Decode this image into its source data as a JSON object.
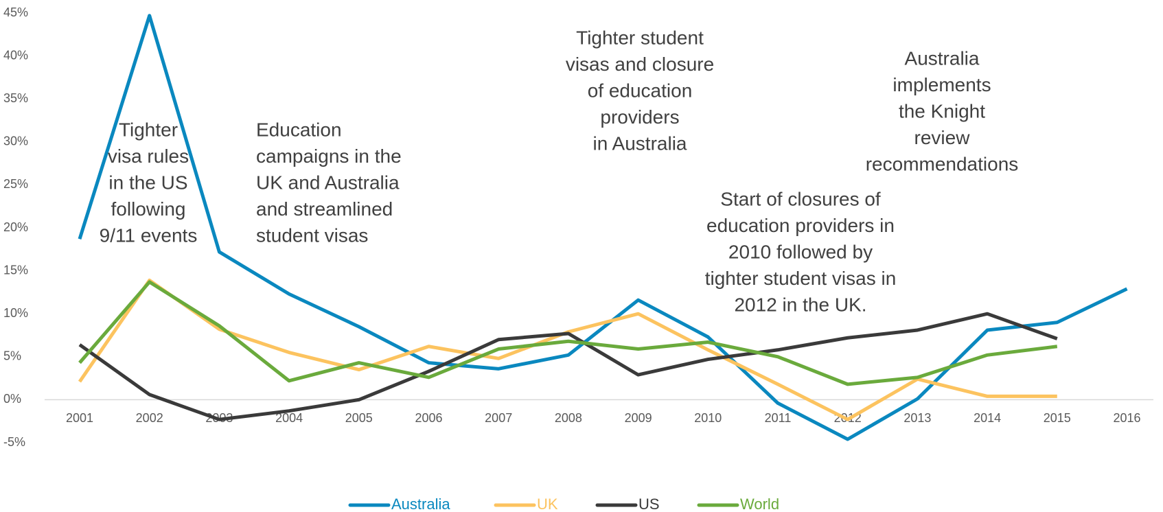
{
  "chart_data": {
    "type": "line",
    "categories": [
      "2001",
      "2002",
      "2003",
      "2004",
      "2005",
      "2006",
      "2007",
      "2008",
      "2009",
      "2010",
      "2011",
      "2012",
      "2013",
      "2014",
      "2015",
      "2016"
    ],
    "series": [
      {
        "name": "Australia",
        "color": "#0a88bf",
        "values": [
          18.7,
          44.7,
          17.2,
          12.3,
          8.5,
          4.3,
          3.6,
          5.2,
          11.6,
          7.3,
          -0.4,
          -4.6,
          0.1,
          8.1,
          9.0,
          12.9
        ]
      },
      {
        "name": "UK",
        "color": "#fcc35f",
        "values": [
          2.1,
          13.9,
          8.2,
          5.5,
          3.5,
          6.2,
          4.8,
          7.9,
          10.0,
          5.8,
          1.8,
          -2.3,
          2.4,
          0.4,
          0.4,
          null
        ]
      },
      {
        "name": "US",
        "color": "#3a3a3a",
        "values": [
          6.4,
          0.6,
          -2.3,
          -1.3,
          0.0,
          3.3,
          7.0,
          7.7,
          2.9,
          4.7,
          5.8,
          7.2,
          8.1,
          10.0,
          7.1,
          null
        ]
      },
      {
        "name": "World",
        "color": "#6aaa3c",
        "values": [
          4.3,
          13.7,
          8.6,
          2.2,
          4.3,
          2.6,
          5.9,
          6.8,
          5.9,
          6.7,
          5.0,
          1.8,
          2.6,
          5.2,
          6.2,
          null
        ]
      }
    ],
    "ylim": [
      -5,
      45
    ],
    "yticks": [
      {
        "value": -5,
        "label": "-5%"
      },
      {
        "value": 0,
        "label": "0%"
      },
      {
        "value": 5,
        "label": "5%"
      },
      {
        "value": 10,
        "label": "10%"
      },
      {
        "value": 15,
        "label": "15%"
      },
      {
        "value": 20,
        "label": "20%"
      },
      {
        "value": 25,
        "label": "25%"
      },
      {
        "value": 30,
        "label": "30%"
      },
      {
        "value": 35,
        "label": "35%"
      },
      {
        "value": 40,
        "label": "40%"
      },
      {
        "value": 45,
        "label": "45%"
      }
    ],
    "legend": "bottom",
    "annotations": [
      {
        "lines": [
          "Tighter",
          "visa rules",
          "in the US",
          "following",
          "9/11 events"
        ]
      },
      {
        "lines": [
          "Education",
          "campaigns in the",
          "UK and Australia",
          "and streamlined",
          "student visas"
        ]
      },
      {
        "lines": [
          "Tighter student",
          "visas and closure",
          "of education",
          "providers",
          "in Australia"
        ]
      },
      {
        "lines": [
          "Australia",
          "implements",
          "the Knight",
          "review",
          "recommendations"
        ]
      },
      {
        "lines": [
          "Start of closures of",
          "education providers in",
          "2010 followed by",
          "tighter student visas in",
          "2012 in the UK."
        ]
      }
    ]
  }
}
